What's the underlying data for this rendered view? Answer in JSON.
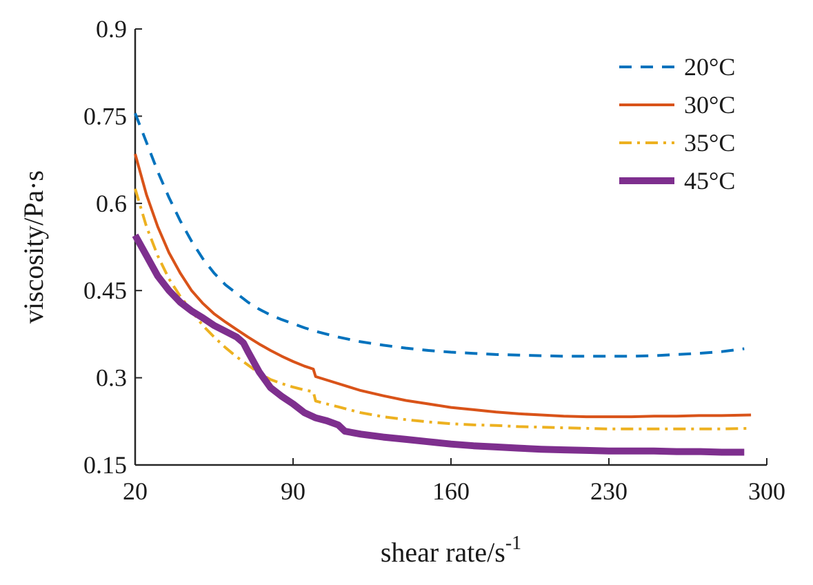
{
  "chart_data": {
    "type": "line",
    "xlabel": "shear rate/s",
    "xlabel_sup": "-1",
    "ylabel": "viscosity/Pa·s",
    "xlim": [
      20,
      300
    ],
    "ylim": [
      0.15,
      0.9
    ],
    "xticks": [
      20,
      90,
      160,
      230,
      300
    ],
    "yticks": [
      0.15,
      0.3,
      0.45,
      0.6,
      0.75,
      0.9
    ],
    "xtick_labels": [
      "20",
      "90",
      "160",
      "230",
      "300"
    ],
    "ytick_labels": [
      "0.15",
      "0.3",
      "0.45",
      "0.6",
      "0.75",
      "0.9"
    ],
    "legend_position": "top-right",
    "series": [
      {
        "name": "20°C",
        "color": "#0072BD",
        "style": "dashed",
        "x": [
          20,
          25,
          30,
          35,
          40,
          45,
          50,
          55,
          60,
          65,
          70,
          75,
          80,
          85,
          90,
          95,
          100,
          110,
          120,
          130,
          140,
          150,
          160,
          170,
          180,
          190,
          200,
          210,
          220,
          230,
          240,
          250,
          260,
          270,
          280,
          290
        ],
        "y": [
          0.755,
          0.705,
          0.655,
          0.61,
          0.57,
          0.535,
          0.505,
          0.48,
          0.46,
          0.445,
          0.43,
          0.418,
          0.408,
          0.4,
          0.393,
          0.386,
          0.38,
          0.37,
          0.362,
          0.356,
          0.351,
          0.347,
          0.344,
          0.342,
          0.34,
          0.339,
          0.338,
          0.337,
          0.337,
          0.337,
          0.337,
          0.338,
          0.34,
          0.342,
          0.345,
          0.35
        ]
      },
      {
        "name": "30°C",
        "color": "#D95319",
        "style": "solid",
        "x": [
          20,
          25,
          30,
          35,
          40,
          45,
          50,
          55,
          60,
          65,
          70,
          75,
          80,
          85,
          90,
          95,
          99,
          100,
          110,
          120,
          130,
          140,
          150,
          160,
          170,
          180,
          190,
          200,
          210,
          220,
          230,
          240,
          250,
          260,
          270,
          280,
          293
        ],
        "y": [
          0.685,
          0.615,
          0.56,
          0.515,
          0.48,
          0.45,
          0.428,
          0.41,
          0.396,
          0.383,
          0.37,
          0.358,
          0.347,
          0.337,
          0.328,
          0.32,
          0.315,
          0.302,
          0.29,
          0.278,
          0.269,
          0.261,
          0.255,
          0.249,
          0.245,
          0.241,
          0.238,
          0.236,
          0.234,
          0.233,
          0.233,
          0.233,
          0.234,
          0.234,
          0.235,
          0.235,
          0.236
        ]
      },
      {
        "name": "35°C",
        "color": "#EDB120",
        "style": "dashdot",
        "x": [
          20,
          25,
          30,
          35,
          40,
          45,
          50,
          55,
          60,
          65,
          70,
          75,
          80,
          85,
          90,
          95,
          99,
          100,
          110,
          120,
          130,
          140,
          150,
          160,
          170,
          180,
          190,
          200,
          210,
          220,
          230,
          240,
          250,
          260,
          270,
          280,
          293
        ],
        "y": [
          0.625,
          0.56,
          0.51,
          0.47,
          0.44,
          0.415,
          0.39,
          0.37,
          0.352,
          0.336,
          0.322,
          0.308,
          0.297,
          0.29,
          0.284,
          0.279,
          0.276,
          0.26,
          0.25,
          0.24,
          0.233,
          0.228,
          0.224,
          0.221,
          0.219,
          0.218,
          0.216,
          0.215,
          0.214,
          0.213,
          0.212,
          0.212,
          0.212,
          0.212,
          0.212,
          0.212,
          0.213
        ]
      },
      {
        "name": "45°C",
        "color": "#7E2F8E",
        "style": "thick",
        "x": [
          20,
          25,
          30,
          35,
          40,
          45,
          50,
          55,
          60,
          65,
          68,
          70,
          75,
          80,
          85,
          90,
          95,
          100,
          105,
          110,
          113,
          120,
          130,
          140,
          150,
          160,
          170,
          180,
          190,
          200,
          210,
          220,
          230,
          240,
          250,
          260,
          270,
          280,
          290
        ],
        "y": [
          0.545,
          0.51,
          0.475,
          0.45,
          0.43,
          0.415,
          0.403,
          0.39,
          0.38,
          0.37,
          0.36,
          0.345,
          0.31,
          0.283,
          0.268,
          0.255,
          0.24,
          0.231,
          0.226,
          0.219,
          0.208,
          0.203,
          0.198,
          0.194,
          0.19,
          0.186,
          0.183,
          0.181,
          0.179,
          0.177,
          0.176,
          0.175,
          0.174,
          0.174,
          0.174,
          0.173,
          0.173,
          0.172,
          0.172
        ]
      }
    ]
  }
}
